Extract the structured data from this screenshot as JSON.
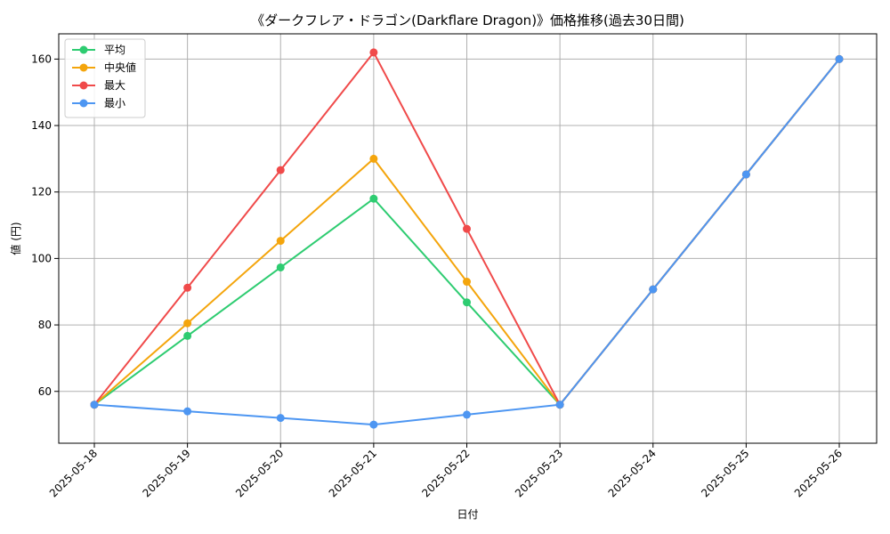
{
  "chart_data": {
    "type": "line",
    "title": "《ダークフレア・ドラゴン(Darkflare Dragon)》価格推移(過去30日間)",
    "xlabel": "日付",
    "ylabel": "値 (円)",
    "categories": [
      "2025-05-18",
      "2025-05-19",
      "2025-05-20",
      "2025-05-21",
      "2025-05-22",
      "2025-05-23",
      "2025-05-24",
      "2025-05-25",
      "2025-05-26"
    ],
    "ylim": [
      44.4,
      167.6
    ],
    "yticks": [
      60,
      80,
      100,
      120,
      140,
      160
    ],
    "grid": true,
    "legend_position": "top-left",
    "series": [
      {
        "name": "平均",
        "color": "#2ecc71",
        "values": [
          56,
          76.7,
          97.3,
          118,
          86.8,
          56,
          90.7,
          125.3,
          160
        ]
      },
      {
        "name": "中央値",
        "color": "#f4a50c",
        "values": [
          56,
          80.5,
          105.3,
          130,
          93,
          56,
          90.7,
          125.3,
          160
        ]
      },
      {
        "name": "最大",
        "color": "#f04a4a",
        "values": [
          56,
          91.2,
          126.6,
          162,
          108.9,
          56,
          90.7,
          125.3,
          160
        ]
      },
      {
        "name": "最小",
        "color": "#4d96f2",
        "values": [
          56,
          54,
          52,
          50,
          53,
          56,
          90.7,
          125.3,
          160
        ]
      }
    ]
  }
}
